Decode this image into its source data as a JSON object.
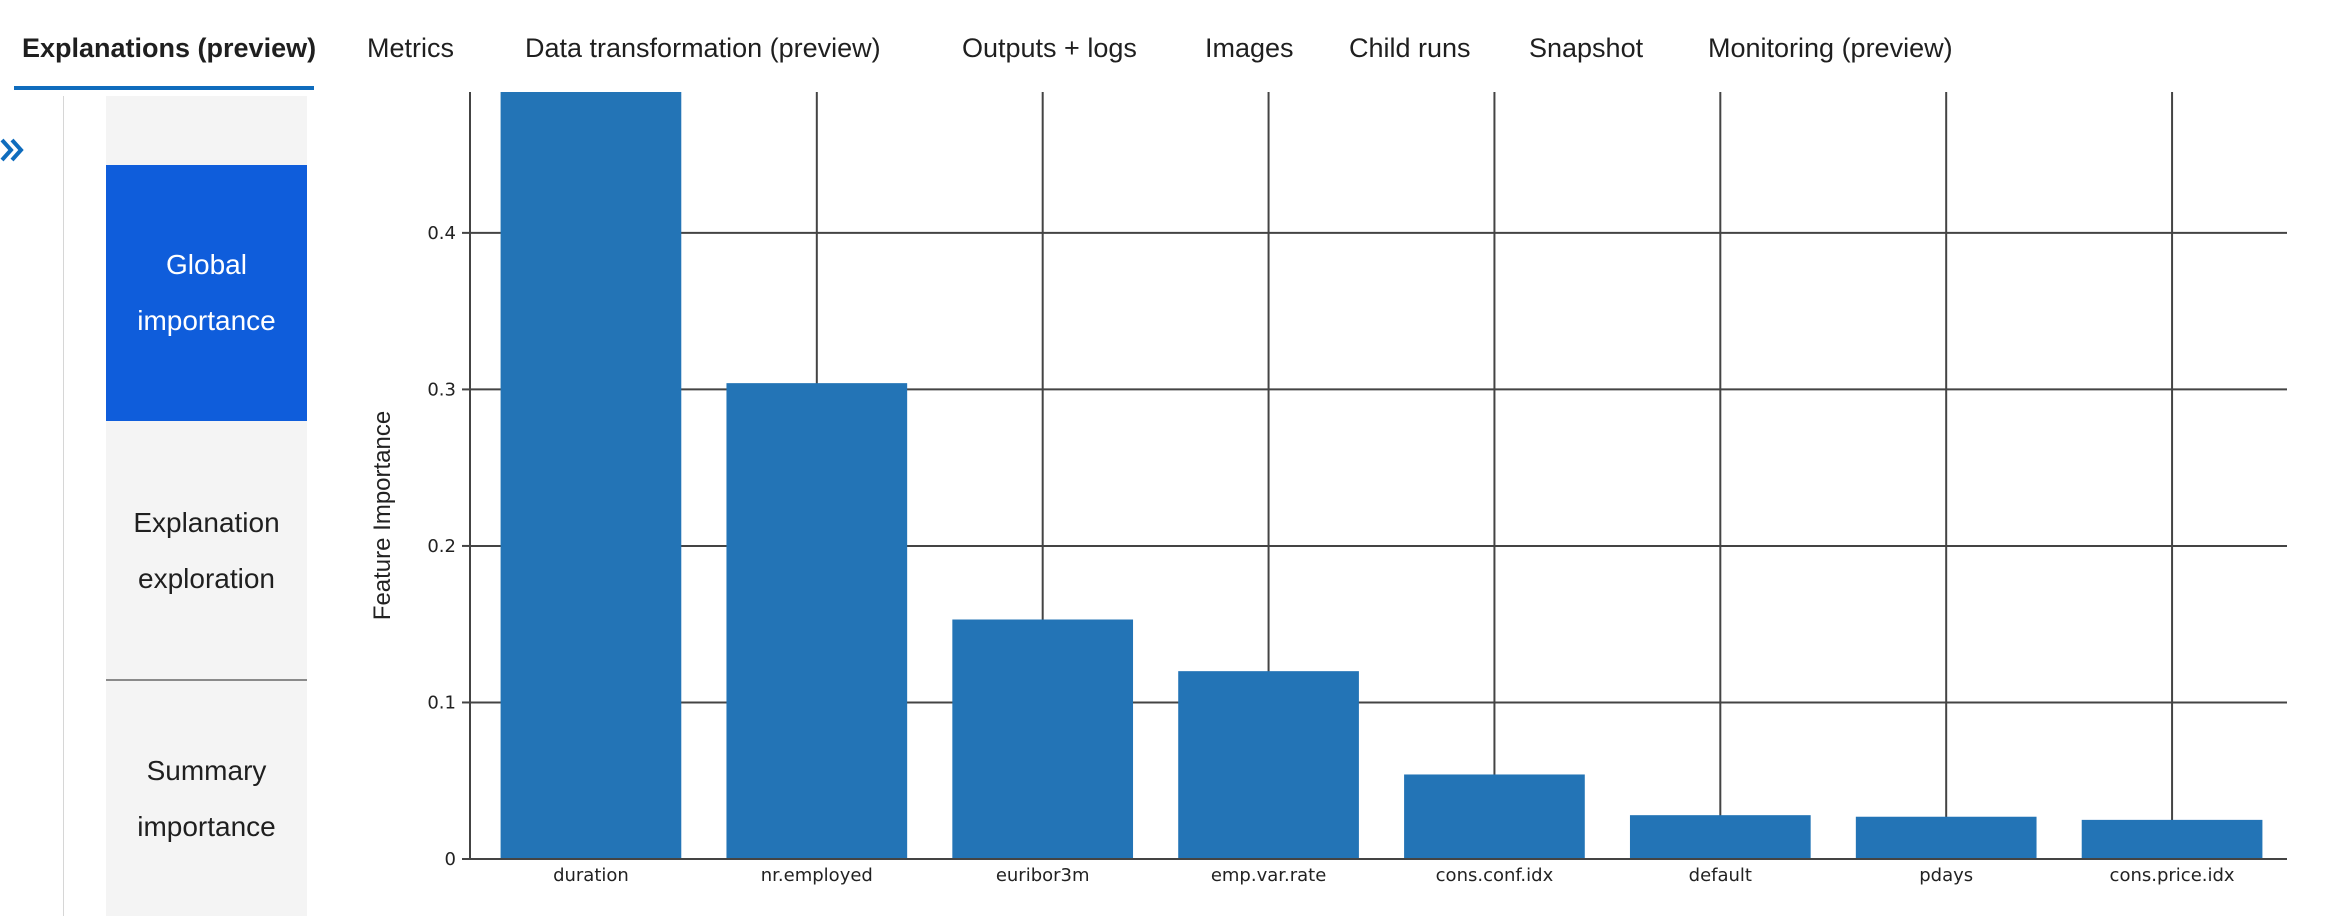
{
  "tabs": [
    {
      "label": "Explanations (preview)",
      "active": true
    },
    {
      "label": "Metrics"
    },
    {
      "label": "Data transformation (preview)"
    },
    {
      "label": "Outputs + logs"
    },
    {
      "label": "Images"
    },
    {
      "label": "Child runs"
    },
    {
      "label": "Snapshot"
    },
    {
      "label": "Monitoring (preview)"
    }
  ],
  "sidebar": {
    "expand_icon": "double-chevron-right-icon",
    "items": [
      {
        "line1": "Global",
        "line2": "importance",
        "active": true
      },
      {
        "line1": "Explanation",
        "line2": "exploration"
      },
      {
        "line1": "Summary",
        "line2": "importance"
      }
    ]
  },
  "colors": {
    "accent": "#0f6cbd",
    "nav_active": "#0f5ddb",
    "bar": "#2374b6"
  },
  "chart_data": {
    "type": "bar",
    "ylabel": "Feature Importance",
    "categories": [
      "duration",
      "nr.employed",
      "euribor3m",
      "emp.var.rate",
      "cons.conf.idx",
      "default",
      "pdays",
      "cons.price.idx"
    ],
    "values": [
      0.5,
      0.304,
      0.153,
      0.12,
      0.054,
      0.028,
      0.027,
      0.025
    ],
    "yticks": [
      "0",
      "0.1",
      "0.2",
      "0.3",
      "0.4"
    ],
    "ylim": [
      0,
      0.49
    ],
    "grid": true
  }
}
